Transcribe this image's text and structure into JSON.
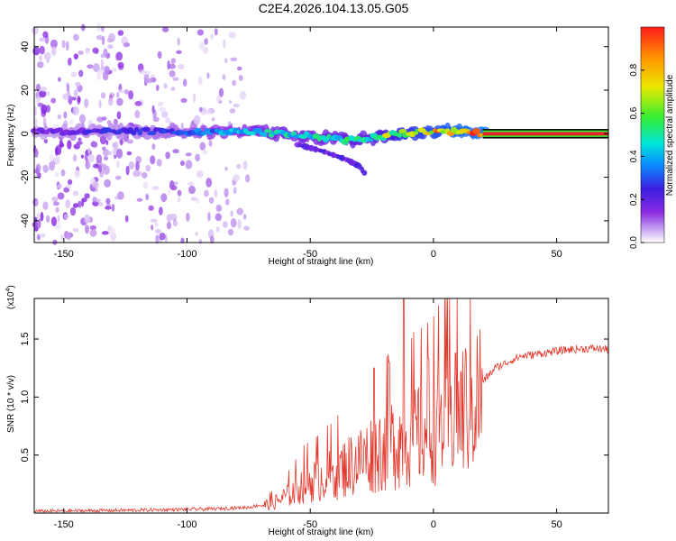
{
  "title": "C2E4.2026.104.13.05.G05",
  "colors": {
    "snr_line": "#e23a2e",
    "carrier": "#e8202a",
    "colormap": [
      "#ffffff",
      "#c9a6f0",
      "#8a2be2",
      "#3a1fe0",
      "#0a8cff",
      "#00e5d8",
      "#33ee33",
      "#e8e800",
      "#ff9a00",
      "#ff1a1a"
    ]
  },
  "chart_data": [
    {
      "id": "spectrogram",
      "type": "heatmap",
      "xlabel": "Height of straight line (km)",
      "ylabel": "Frequency (Hz)",
      "xlim": [
        -162,
        71
      ],
      "ylim": [
        -50,
        49
      ],
      "xticks": [
        -150,
        -100,
        -50,
        0,
        50
      ],
      "yticks": [
        -40,
        -20,
        0,
        20,
        40
      ],
      "colorbar": {
        "label": "Normalized spectral amplitude",
        "range": [
          0,
          1
        ],
        "ticks": [
          "0.0",
          "0.2",
          "0.4",
          "0.6",
          "0.8"
        ],
        "tick_values": [
          0,
          0.2,
          0.4,
          0.6,
          0.8
        ]
      },
      "ridge": {
        "x": [
          -160,
          -140,
          -120,
          -100,
          -80,
          -60,
          -45,
          -35,
          -25,
          -15,
          0,
          10,
          20,
          71
        ],
        "freq": [
          1,
          1,
          1,
          1,
          1,
          0,
          -2,
          -3,
          -2,
          0,
          1,
          1,
          0,
          0
        ],
        "amplitude": [
          0.25,
          0.3,
          0.33,
          0.38,
          0.5,
          0.55,
          0.55,
          0.6,
          0.62,
          0.75,
          0.85,
          0.9,
          0.95,
          1.0
        ]
      },
      "secondary_branch": {
        "x": [
          -55,
          -45,
          -35,
          -30,
          -28
        ],
        "freq": [
          -5,
          -8,
          -12,
          -15,
          -18
        ]
      },
      "scatter_extent_x": [
        -162,
        -75
      ]
    },
    {
      "id": "snr",
      "type": "line",
      "xlabel": "Height of straight line (km)",
      "ylabel": "SNR (10 * v/v)",
      "multiplier_label": "(x10",
      "multiplier_exp": "4",
      "multiplier_close": ")",
      "xlim": [
        -162,
        71
      ],
      "ylim": [
        0,
        18500
      ],
      "xticks": [
        -150,
        -100,
        -50,
        0,
        50
      ],
      "yticks": [
        5000,
        10000,
        15000
      ],
      "ytick_labels": [
        "0.5",
        "1.0",
        "1.5"
      ],
      "series": [
        {
          "name": "SNR",
          "x": [
            -162,
            -120,
            -90,
            -75,
            -65,
            -58,
            -52,
            -45,
            -35,
            -25,
            -15,
            -5,
            5,
            15,
            25,
            35,
            45,
            55,
            65,
            71
          ],
          "y": [
            150,
            250,
            350,
            500,
            900,
            1800,
            2800,
            3300,
            4300,
            5500,
            6700,
            7400,
            8700,
            10100,
            12500,
            13500,
            13800,
            14100,
            14200,
            14100
          ]
        }
      ],
      "spikes": [
        {
          "x": -12,
          "y": 18500
        },
        {
          "x": -24,
          "y": 12500
        },
        {
          "x": -18,
          "y": 13000
        },
        {
          "x": -2,
          "y": 13300
        },
        {
          "x": 9,
          "y": 13800
        }
      ]
    }
  ]
}
